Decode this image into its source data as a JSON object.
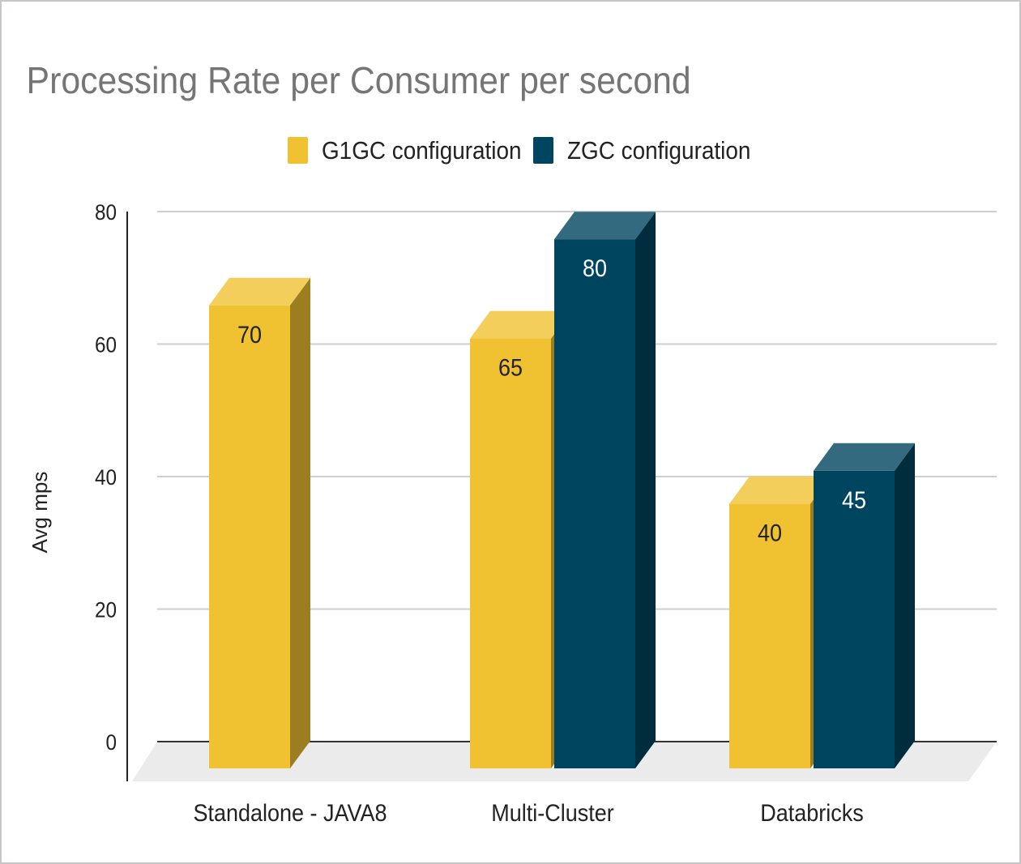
{
  "chart_data": {
    "type": "bar",
    "style": "3d",
    "title": "Processing Rate per Consumer per second",
    "xlabel": "",
    "ylabel": "Avg mps",
    "ylim": [
      0,
      80
    ],
    "yticks": [
      0,
      20,
      40,
      60,
      80
    ],
    "grid": true,
    "legend_position": "top",
    "categories": [
      "Standalone - JAVA8",
      "Multi-Cluster",
      "Databricks"
    ],
    "series": [
      {
        "name": "G1GC configuration",
        "values": [
          70,
          65,
          40
        ],
        "color": "#F0C232"
      },
      {
        "name": "ZGC configuration",
        "values": [
          null,
          80,
          45
        ],
        "color": "#004560"
      }
    ]
  }
}
